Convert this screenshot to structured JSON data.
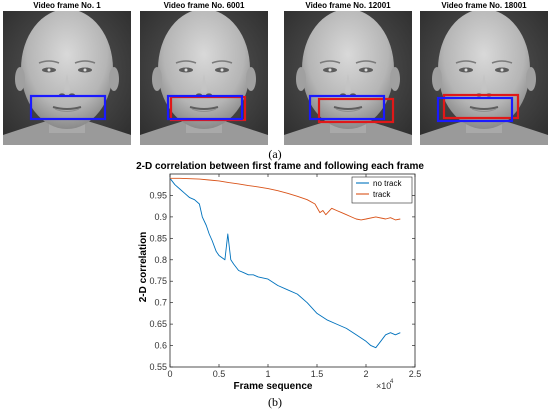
{
  "panel_a": {
    "frames": [
      {
        "title": "Video frame No. 1",
        "boxes": [
          {
            "color": "#1a1aff"
          }
        ]
      },
      {
        "title": "Video frame No. 6001",
        "boxes": [
          {
            "color": "#1a1aff"
          },
          {
            "color": "#e01818"
          }
        ]
      },
      {
        "title": "Video frame No. 12001",
        "boxes": [
          {
            "color": "#1a1aff"
          },
          {
            "color": "#e01818"
          }
        ]
      },
      {
        "title": "Video frame No. 18001",
        "boxes": [
          {
            "color": "#1a1aff"
          },
          {
            "color": "#e01818"
          }
        ]
      }
    ],
    "caption": "(a)"
  },
  "panel_b": {
    "caption": "(b)",
    "x_multiplier": "×10",
    "x_multiplier_exp": "4"
  },
  "chart_data": {
    "type": "line",
    "title": "2-D correlation between first frame and following each frame",
    "xlabel": "Frame sequence",
    "ylabel": "2-D correlation",
    "xlim": [
      0,
      25000
    ],
    "ylim": [
      0.55,
      1.0
    ],
    "x_ticks": [
      0,
      5000,
      10000,
      15000,
      20000,
      25000
    ],
    "x_tick_labels": [
      "0",
      "0.5",
      "1",
      "1.5",
      "2",
      "2.5"
    ],
    "y_ticks": [
      0.55,
      0.6,
      0.65,
      0.7,
      0.75,
      0.8,
      0.85,
      0.9,
      0.95
    ],
    "y_tick_labels": [
      "0.55",
      "0.6",
      "0.65",
      "0.7",
      "0.75",
      "0.8",
      "0.85",
      "0.9",
      "0.95"
    ],
    "grid": false,
    "legend_position": "top-right",
    "series": [
      {
        "name": "no track",
        "color": "#0072bd",
        "x": [
          0,
          500,
          1000,
          1500,
          2000,
          2500,
          3000,
          3300,
          3700,
          4000,
          4300,
          4700,
          5000,
          5300,
          5600,
          5900,
          6200,
          6500,
          7000,
          7500,
          8000,
          8500,
          9000,
          10000,
          11000,
          12000,
          13000,
          14000,
          15000,
          16000,
          17000,
          18000,
          19000,
          20000,
          20500,
          21000,
          21500,
          22000,
          22500,
          23000,
          23500
        ],
        "y": [
          0.99,
          0.975,
          0.965,
          0.955,
          0.945,
          0.94,
          0.93,
          0.9,
          0.88,
          0.86,
          0.845,
          0.82,
          0.81,
          0.805,
          0.8,
          0.86,
          0.8,
          0.79,
          0.775,
          0.77,
          0.765,
          0.765,
          0.76,
          0.755,
          0.74,
          0.73,
          0.72,
          0.7,
          0.675,
          0.66,
          0.65,
          0.64,
          0.625,
          0.61,
          0.6,
          0.595,
          0.61,
          0.625,
          0.63,
          0.625,
          0.63
        ]
      },
      {
        "name": "track",
        "color": "#d95319",
        "x": [
          0,
          1000,
          2000,
          3000,
          4000,
          5000,
          6000,
          7000,
          8000,
          9000,
          10000,
          11000,
          12000,
          13000,
          14000,
          14800,
          15300,
          15600,
          15900,
          16500,
          17000,
          17500,
          18000,
          18500,
          19000,
          19500,
          20000,
          21000,
          22000,
          22500,
          23000,
          23500
        ],
        "y": [
          0.99,
          0.99,
          0.989,
          0.988,
          0.986,
          0.984,
          0.98,
          0.977,
          0.973,
          0.97,
          0.966,
          0.961,
          0.955,
          0.948,
          0.94,
          0.93,
          0.91,
          0.915,
          0.905,
          0.92,
          0.915,
          0.91,
          0.905,
          0.9,
          0.895,
          0.893,
          0.895,
          0.9,
          0.895,
          0.898,
          0.893,
          0.895
        ]
      }
    ]
  }
}
